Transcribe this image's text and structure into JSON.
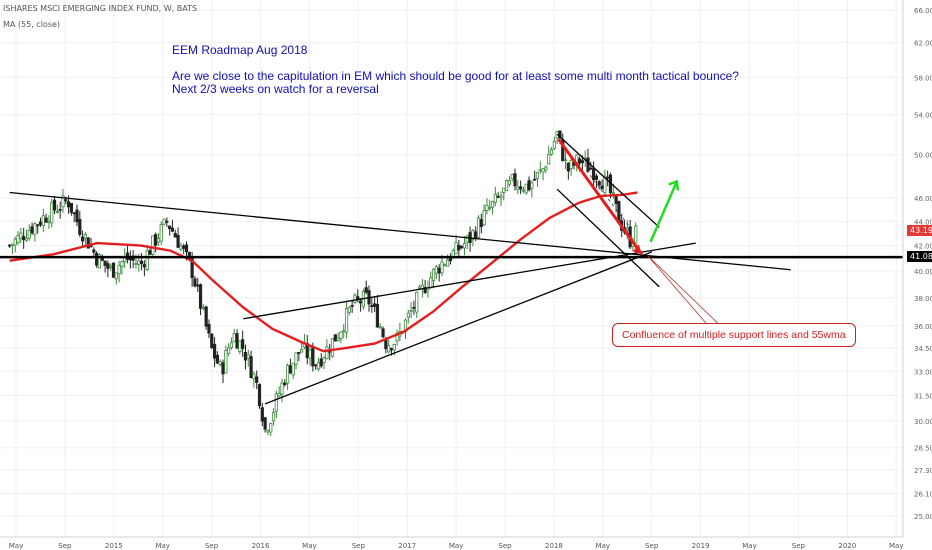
{
  "header": {
    "symbol_line": "ISHARES MSCI EMERGING INDEX FUND, W, BATS",
    "indicator_line": "MA (55, close)"
  },
  "annotation": {
    "title": "EEM Roadmap Aug 2018",
    "line1": "Are we close to the capitulation in EM which should be good for at least some multi month tactical bounce?",
    "line2": "Next 2/3 weeks on watch for a reversal"
  },
  "callout": {
    "text": "Confluence of multiple support lines and 55wma"
  },
  "price_tags": {
    "current": "43.19",
    "support": "41.08",
    "current_color": "#e53935",
    "support_color": "#000000"
  },
  "colors": {
    "up": "#3a8a3a",
    "down": "#222222",
    "ma": "#e41e1e",
    "lines": "#000000",
    "green_arrow": "#22dd22",
    "red_arrow": "#e41e1e",
    "annotation_text": "#1010b4"
  },
  "chart_data": {
    "type": "candlestick",
    "series_name": "ISHARES MSCI EMERGING INDEX FUND",
    "timeframe": "W",
    "scale": "log",
    "y_ticks": [
      "66.00",
      "62.00",
      "58.00",
      "54.00",
      "50.00",
      "46.00",
      "44.00",
      "42.00",
      "40.00",
      "38.00",
      "36.00",
      "34.50",
      "33.00",
      "31.50",
      "30.00",
      "28.50",
      "27.30",
      "26.10",
      "25.00"
    ],
    "x_ticks": [
      "May",
      "Sep",
      "2015",
      "May",
      "Sep",
      "2016",
      "May",
      "Sep",
      "2017",
      "May",
      "Sep",
      "2018",
      "May",
      "Sep",
      "2019",
      "May",
      "Sep",
      "2020",
      "May"
    ],
    "close_path": [
      [
        2014.3,
        42.0
      ],
      [
        2014.45,
        43.5
      ],
      [
        2014.6,
        45.0
      ],
      [
        2014.7,
        45.8
      ],
      [
        2014.78,
        43.5
      ],
      [
        2014.9,
        41.0
      ],
      [
        2015.0,
        40.0
      ],
      [
        2015.1,
        41.0
      ],
      [
        2015.2,
        40.5
      ],
      [
        2015.3,
        42.5
      ],
      [
        2015.38,
        44.0
      ],
      [
        2015.45,
        42.5
      ],
      [
        2015.55,
        40.0
      ],
      [
        2015.62,
        37.0
      ],
      [
        2015.68,
        34.5
      ],
      [
        2015.75,
        33.0
      ],
      [
        2015.83,
        35.5
      ],
      [
        2015.9,
        34.5
      ],
      [
        2016.0,
        32.0
      ],
      [
        2016.05,
        29.5
      ],
      [
        2016.1,
        30.5
      ],
      [
        2016.2,
        33.0
      ],
      [
        2016.3,
        34.5
      ],
      [
        2016.4,
        33.5
      ],
      [
        2016.48,
        34.5
      ],
      [
        2016.55,
        35.5
      ],
      [
        2016.65,
        37.5
      ],
      [
        2016.75,
        38.0
      ],
      [
        2016.82,
        36.5
      ],
      [
        2016.88,
        34.8
      ],
      [
        2016.95,
        35.0
      ],
      [
        2017.05,
        37.0
      ],
      [
        2017.15,
        39.0
      ],
      [
        2017.25,
        40.5
      ],
      [
        2017.35,
        41.5
      ],
      [
        2017.45,
        42.5
      ],
      [
        2017.55,
        44.5
      ],
      [
        2017.65,
        46.0
      ],
      [
        2017.75,
        47.5
      ],
      [
        2017.85,
        47.0
      ],
      [
        2017.95,
        48.5
      ],
      [
        2018.05,
        52.0
      ],
      [
        2018.12,
        48.5
      ],
      [
        2018.2,
        49.5
      ],
      [
        2018.3,
        48.5
      ],
      [
        2018.4,
        47.0
      ],
      [
        2018.48,
        44.0
      ],
      [
        2018.55,
        42.5
      ],
      [
        2018.6,
        43.19
      ]
    ],
    "ma55_path": [
      [
        2014.3,
        40.8
      ],
      [
        2014.6,
        41.3
      ],
      [
        2014.9,
        42.2
      ],
      [
        2015.2,
        42.0
      ],
      [
        2015.4,
        41.6
      ],
      [
        2015.55,
        40.8
      ],
      [
        2015.7,
        39.2
      ],
      [
        2015.9,
        37.3
      ],
      [
        2016.1,
        35.8
      ],
      [
        2016.3,
        34.9
      ],
      [
        2016.45,
        34.3
      ],
      [
        2016.6,
        34.5
      ],
      [
        2016.8,
        34.8
      ],
      [
        2017.0,
        35.6
      ],
      [
        2017.2,
        37.0
      ],
      [
        2017.4,
        38.8
      ],
      [
        2017.6,
        40.6
      ],
      [
        2017.8,
        42.5
      ],
      [
        2018.0,
        44.3
      ],
      [
        2018.2,
        45.6
      ],
      [
        2018.35,
        46.2
      ],
      [
        2018.5,
        46.3
      ],
      [
        2018.6,
        46.5
      ]
    ],
    "trendlines": [
      {
        "from": [
          2014.3,
          46.5
        ],
        "to": [
          2019.65,
          40.1
        ]
      },
      {
        "from": [
          2015.9,
          36.5
        ],
        "to": [
          2019.0,
          42.2
        ]
      },
      {
        "from": [
          2016.05,
          31.0
        ],
        "to": [
          2018.7,
          41.5
        ]
      },
      {
        "from": [
          2018.05,
          52.0
        ],
        "to": [
          2018.75,
          43.5
        ]
      },
      {
        "from": [
          2018.05,
          46.8
        ],
        "to": [
          2018.75,
          38.8
        ]
      }
    ],
    "support_level": 41.08
  }
}
